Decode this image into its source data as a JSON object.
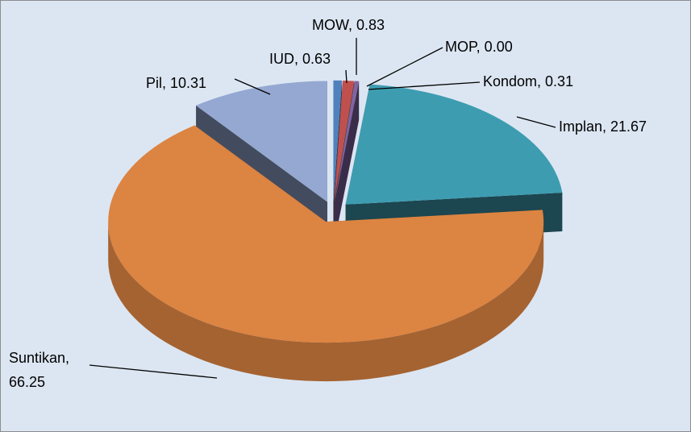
{
  "chart_data": {
    "type": "pie",
    "style": "3d-exploded",
    "values": [
      0.63,
      0.83,
      0.0,
      0.31,
      21.67,
      66.25,
      10.31
    ],
    "value_labels": [
      "IUD, 0.63",
      "MOW, 0.83",
      "MOP, 0.00",
      "Kondom, 0.31",
      "Implan, 21.67",
      "Suntikan, 66.25",
      "Pil, 10.31"
    ],
    "colors": [
      "#4f81bd",
      "#c0504d",
      "#9bbb59",
      "#8064a2",
      "#3e9cb1",
      "#dc8442",
      "#94a8d2"
    ]
  }
}
